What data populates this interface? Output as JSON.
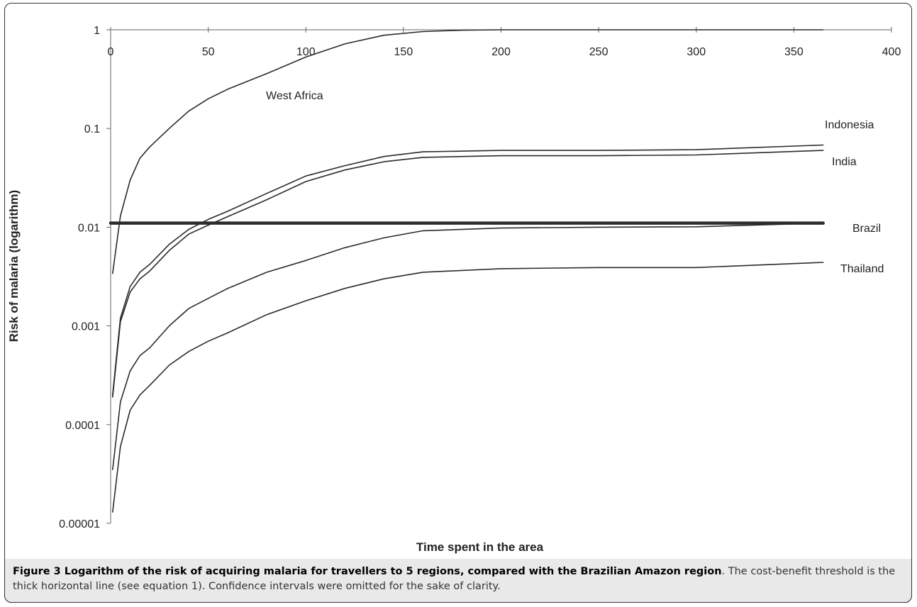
{
  "chart_data": {
    "type": "line",
    "xlabel": "Time spent in the area",
    "ylabel": "Risk of malaria (logarithm)",
    "xlim": [
      0,
      400
    ],
    "ylim": [
      1e-05,
      1
    ],
    "yscale": "log",
    "x_ticks": [
      "0",
      "50",
      "100",
      "150",
      "200",
      "250",
      "300",
      "350",
      "400"
    ],
    "y_ticks": [
      "1",
      "0.1",
      "0.01",
      "0.001",
      "0.0001",
      "0.00001"
    ],
    "series": [
      {
        "name": "West Africa",
        "x": [
          1,
          5,
          10,
          15,
          20,
          30,
          40,
          50,
          60,
          80,
          100,
          120,
          140,
          160,
          180,
          200,
          250,
          300,
          330,
          365
        ],
        "y": [
          0.0034,
          0.013,
          0.03,
          0.05,
          0.065,
          0.1,
          0.15,
          0.2,
          0.25,
          0.36,
          0.53,
          0.72,
          0.88,
          0.96,
          0.99,
          1.0,
          1.0,
          1.0,
          1.0,
          1.0
        ]
      },
      {
        "name": "Indonesia",
        "x": [
          1,
          5,
          10,
          15,
          20,
          30,
          40,
          50,
          60,
          80,
          100,
          120,
          140,
          160,
          200,
          250,
          300,
          365
        ],
        "y": [
          0.0002,
          0.0012,
          0.0025,
          0.0035,
          0.0042,
          0.0067,
          0.0095,
          0.012,
          0.0145,
          0.022,
          0.033,
          0.042,
          0.052,
          0.058,
          0.06,
          0.06,
          0.061,
          0.068
        ]
      },
      {
        "name": "India",
        "x": [
          1,
          5,
          10,
          15,
          20,
          30,
          40,
          50,
          60,
          80,
          100,
          120,
          140,
          160,
          200,
          250,
          300,
          365
        ],
        "y": [
          0.00019,
          0.0011,
          0.0022,
          0.003,
          0.0036,
          0.0058,
          0.0085,
          0.0105,
          0.0128,
          0.019,
          0.029,
          0.038,
          0.046,
          0.051,
          0.053,
          0.053,
          0.054,
          0.06
        ]
      },
      {
        "name": "Brazil",
        "x": [
          1,
          5,
          10,
          15,
          20,
          30,
          40,
          50,
          60,
          80,
          100,
          120,
          140,
          160,
          200,
          250,
          300,
          365
        ],
        "y": [
          3.5e-05,
          0.00017,
          0.00035,
          0.0005,
          0.0006,
          0.001,
          0.0015,
          0.0019,
          0.0024,
          0.0035,
          0.0046,
          0.0062,
          0.0078,
          0.0092,
          0.0098,
          0.01,
          0.0101,
          0.011
        ]
      },
      {
        "name": "Thailand",
        "x": [
          1,
          5,
          10,
          15,
          20,
          30,
          40,
          50,
          60,
          80,
          100,
          120,
          140,
          160,
          200,
          250,
          300,
          365
        ],
        "y": [
          1.3e-05,
          6e-05,
          0.00014,
          0.0002,
          0.00025,
          0.0004,
          0.00055,
          0.0007,
          0.00085,
          0.0013,
          0.0018,
          0.0024,
          0.003,
          0.0035,
          0.0038,
          0.0039,
          0.0039,
          0.0044
        ]
      },
      {
        "name": "",
        "role": "cost-benefit threshold",
        "x": [
          0,
          365
        ],
        "y": [
          0.011,
          0.011
        ]
      }
    ],
    "legend": "none"
  },
  "caption": {
    "bold": "Figure 3 Logarithm of the risk of acquiring malaria for travellers to 5 regions, compared with the Brazilian Amazon region",
    "rest": ". The cost-benefit threshold is the thick horizontal line (see equation 1). Confidence intervals were omitted for the sake of clarity."
  },
  "colors": {
    "line": "#2b2b2b",
    "caption_bg": "#e9e9e9"
  }
}
